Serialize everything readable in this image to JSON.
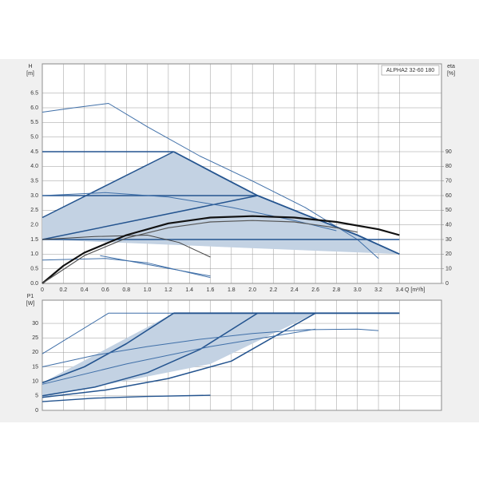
{
  "chart_data": [
    {
      "type": "line",
      "title": "ALPHA2 32-60 180",
      "ylabel": "H",
      "yunit": "[m]",
      "y2label": "eta",
      "y2unit": "[%]",
      "xlabel": "Q [m³/h]",
      "xlim": [
        0,
        3.8
      ],
      "ylim": [
        0,
        7.5
      ],
      "y2lim": [
        0,
        150
      ],
      "grid": true,
      "xticks": [
        0,
        0.2,
        0.4,
        0.6,
        0.8,
        {
          "value": 1,
          "label": "1.0"
        },
        1.2,
        1.4,
        1.6,
        1.8,
        {
          "value": 2,
          "label": "2.0"
        },
        2.2,
        2.4,
        2.6,
        2.8,
        {
          "value": 3,
          "label": "3.0"
        },
        3.2,
        3.4
      ],
      "yticks": [
        {
          "value": 0,
          "label": "0.0"
        },
        0.5,
        {
          "value": 1,
          "label": "1.0"
        },
        1.5,
        {
          "value": 2,
          "label": "2.0"
        },
        2.5,
        {
          "value": 3,
          "label": "3.0"
        },
        3.5,
        {
          "value": 4,
          "label": "4.0"
        },
        4.5,
        {
          "value": 5,
          "label": "5.0"
        },
        5.5,
        {
          "value": 6,
          "label": "6.0"
        },
        6.5
      ],
      "y2ticks": [
        0,
        10,
        20,
        30,
        40,
        50,
        60,
        70,
        80,
        90
      ],
      "series": [
        {
          "x": [
            0,
            1.25,
            1.7,
            2.05,
            2.5,
            3.0,
            3.4,
            1.7,
            0
          ],
          "values": [
            2.25,
            4.5,
            3.65,
            3.0,
            2.35,
            1.65,
            1.0,
            1.25,
            1.5
          ],
          "color": "#c3d2e3",
          "fill": true
        },
        {
          "x": [
            0,
            0.3,
            0.63,
            1.0,
            1.5,
            2.0,
            2.5,
            3.0,
            3.2
          ],
          "values": [
            5.85,
            6.0,
            6.15,
            5.35,
            4.35,
            3.5,
            2.6,
            1.5,
            0.85
          ],
          "color": "#3f6fa8"
        },
        {
          "x": [
            1.25,
            1.7,
            2.05,
            2.5,
            3.0,
            3.4
          ],
          "values": [
            4.5,
            3.65,
            3.0,
            2.35,
            1.65,
            1.0
          ],
          "color": "#24548f",
          "width": 1.8
        },
        {
          "x": [
            0,
            1.25
          ],
          "values": [
            4.5,
            4.5
          ],
          "color": "#24548f",
          "width": 1.5
        },
        {
          "x": [
            0,
            2.05
          ],
          "values": [
            3.0,
            3.0
          ],
          "color": "#24548f",
          "width": 1.5
        },
        {
          "x": [
            0,
            3.4
          ],
          "values": [
            1.5,
            1.5
          ],
          "color": "#24548f",
          "width": 1.5
        },
        {
          "x": [
            0,
            1.25
          ],
          "values": [
            2.25,
            4.5
          ],
          "color": "#24548f",
          "width": 1.5
        },
        {
          "x": [
            0,
            2.05
          ],
          "values": [
            1.5,
            3.0
          ],
          "color": "#24548f",
          "width": 1.5
        },
        {
          "x": [
            0,
            0.6,
            1.2,
            1.8,
            2.4,
            2.8
          ],
          "values": [
            3.0,
            3.1,
            2.95,
            2.6,
            2.15,
            1.8
          ],
          "color": "#3f6fa8"
        },
        {
          "x": [
            0,
            0.5,
            1.0,
            1.3,
            1.6
          ],
          "values": [
            1.5,
            1.6,
            1.65,
            1.4,
            0.9
          ],
          "color": "#444444"
        },
        {
          "x": [
            0,
            0.6,
            1.0,
            1.6
          ],
          "values": [
            0.8,
            0.85,
            0.7,
            0.2
          ],
          "color": "#3f6fa8"
        },
        {
          "x": [
            0.55,
            1.0,
            1.6
          ],
          "values": [
            0.95,
            0.65,
            0.25
          ],
          "color": "#3f6fa8"
        },
        {
          "x": [
            0,
            0.2,
            0.4,
            0.8,
            1.2,
            1.6,
            2.0,
            2.4,
            2.8,
            3.2,
            3.4
          ],
          "values": [
            0,
            12,
            21,
            33,
            41,
            45,
            46,
            45,
            42,
            37,
            33
          ],
          "color": "#111111",
          "width": 2.2,
          "axis": "y2"
        },
        {
          "x": [
            0,
            0.4,
            0.8,
            1.2,
            1.6,
            2.0,
            2.4,
            2.8,
            3.0
          ],
          "values": [
            0,
            19,
            31,
            38,
            42,
            43,
            42,
            38,
            35
          ],
          "color": "#555555",
          "width": 1.2,
          "axis": "y2"
        }
      ]
    },
    {
      "type": "line",
      "ylabel": "P1",
      "yunit": "[W]",
      "xlim": [
        0,
        3.8
      ],
      "ylim": [
        0,
        38
      ],
      "grid": true,
      "xticks": [
        0,
        0.2,
        0.4,
        0.6,
        0.8,
        1,
        1.2,
        1.4,
        1.6,
        1.8,
        2,
        2.2,
        2.4,
        2.6,
        2.8,
        3,
        3.2,
        3.4
      ],
      "yticks": [
        0,
        5,
        10,
        15,
        20,
        25,
        30
      ],
      "series": [
        {
          "x": [
            0,
            1.25,
            2.6,
            1.6,
            0
          ],
          "values": [
            9.5,
            33.5,
            33.5,
            16,
            4.5
          ],
          "color": "#c3d2e3",
          "fill": true
        },
        {
          "x": [
            0,
            0.63,
            3.4
          ],
          "values": [
            19.5,
            33.5,
            33.5
          ],
          "color": "#3f6fa8"
        },
        {
          "x": [
            1.25,
            3.4
          ],
          "values": [
            33.5,
            33.5
          ],
          "color": "#24548f",
          "width": 1.8
        },
        {
          "x": [
            0,
            0.4,
            0.8,
            1.25
          ],
          "values": [
            9.5,
            15,
            23,
            33.5
          ],
          "color": "#24548f",
          "width": 1.6
        },
        {
          "x": [
            0,
            0.5,
            1.0,
            1.5,
            2.05
          ],
          "values": [
            5,
            8,
            13,
            21,
            33.5
          ],
          "color": "#24548f",
          "width": 1.5
        },
        {
          "x": [
            0,
            0.6,
            1.2,
            1.8,
            2.6
          ],
          "values": [
            4.5,
            7,
            11,
            17,
            33.5
          ],
          "color": "#24548f",
          "width": 1.5
        },
        {
          "x": [
            0,
            0.5,
            1.0,
            1.5,
            2.0,
            2.5,
            3.0,
            3.2
          ],
          "values": [
            15,
            19,
            22,
            24.5,
            26.5,
            27.8,
            28,
            27.5
          ],
          "color": "#3f6fa8"
        },
        {
          "x": [
            0,
            0.8,
            1.6,
            2.6
          ],
          "values": [
            9,
            16,
            22,
            28
          ],
          "color": "#3f6fa8"
        },
        {
          "x": [
            0,
            0.5,
            1.0,
            1.6
          ],
          "values": [
            3,
            4.2,
            4.8,
            5.2
          ],
          "color": "#24548f",
          "width": 1.4
        }
      ]
    }
  ]
}
